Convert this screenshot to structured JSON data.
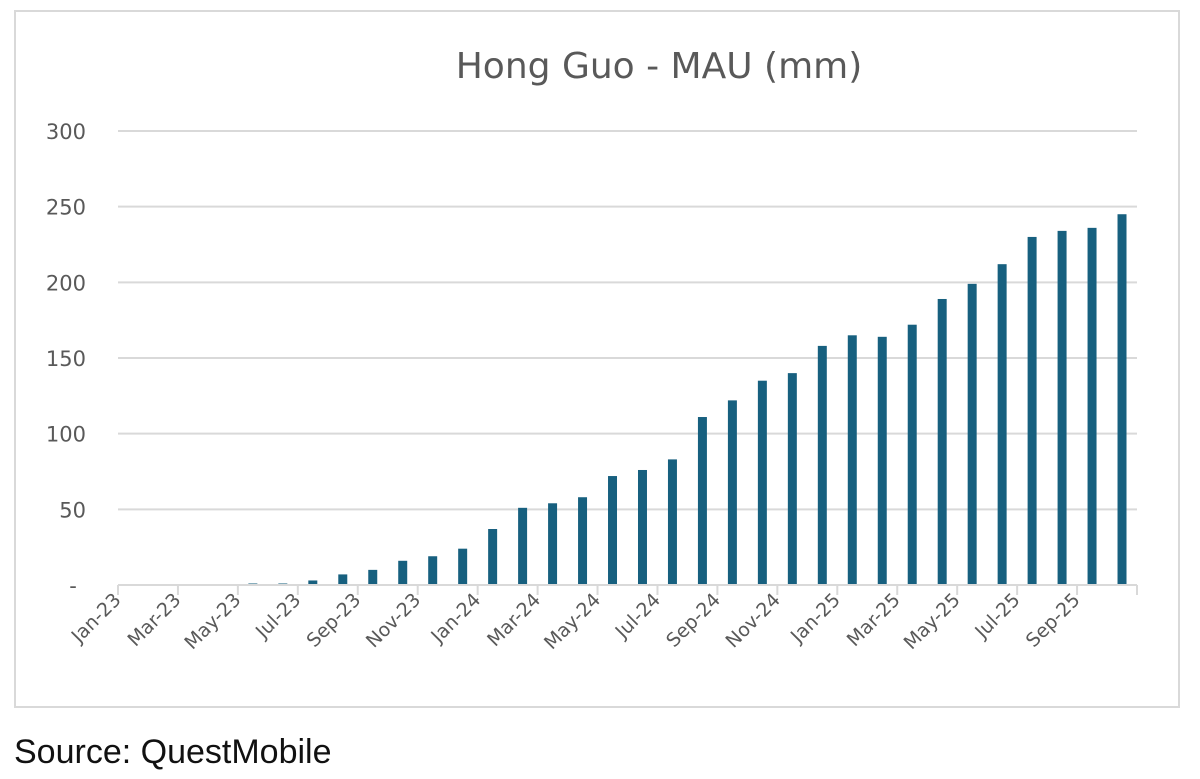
{
  "source_text": "Source: QuestMobile",
  "chart_data": {
    "type": "bar",
    "title": "Hong Guo - MAU (mm)",
    "xlabel": "",
    "ylabel": "",
    "ylim": [
      0,
      300
    ],
    "yticks": [
      0,
      50,
      100,
      150,
      200,
      250,
      300
    ],
    "ytick_labels": [
      "-",
      "50",
      "100",
      "150",
      "200",
      "250",
      "300"
    ],
    "grid": true,
    "bar_color": "#17607f",
    "categories": [
      "Jan-23",
      "Feb-23",
      "Mar-23",
      "Apr-23",
      "May-23",
      "Jun-23",
      "Jul-23",
      "Aug-23",
      "Sep-23",
      "Oct-23",
      "Nov-23",
      "Dec-23",
      "Jan-24",
      "Feb-24",
      "Mar-24",
      "Apr-24",
      "May-24",
      "Jun-24",
      "Jul-24",
      "Aug-24",
      "Sep-24",
      "Oct-24",
      "Nov-24",
      "Dec-24",
      "Jan-25",
      "Feb-25",
      "Mar-25",
      "Apr-25",
      "May-25",
      "Jun-25",
      "Jul-25",
      "Aug-25",
      "Sep-25",
      "Oct-25"
    ],
    "x_tick_labels": [
      "Jan-23",
      "Mar-23",
      "May-23",
      "Jul-23",
      "Sep-23",
      "Nov-23",
      "Jan-24",
      "Mar-24",
      "May-24",
      "Jul-24",
      "Sep-24",
      "Nov-24",
      "Jan-25",
      "Mar-25",
      "May-25",
      "Jul-25",
      "Sep-25"
    ],
    "values": [
      0,
      0,
      0,
      0,
      1,
      1,
      3,
      7,
      10,
      16,
      19,
      24,
      37,
      51,
      54,
      58,
      72,
      76,
      83,
      111,
      122,
      135,
      140,
      158,
      165,
      164,
      172,
      189,
      199,
      212,
      230,
      234,
      236,
      245
    ]
  }
}
